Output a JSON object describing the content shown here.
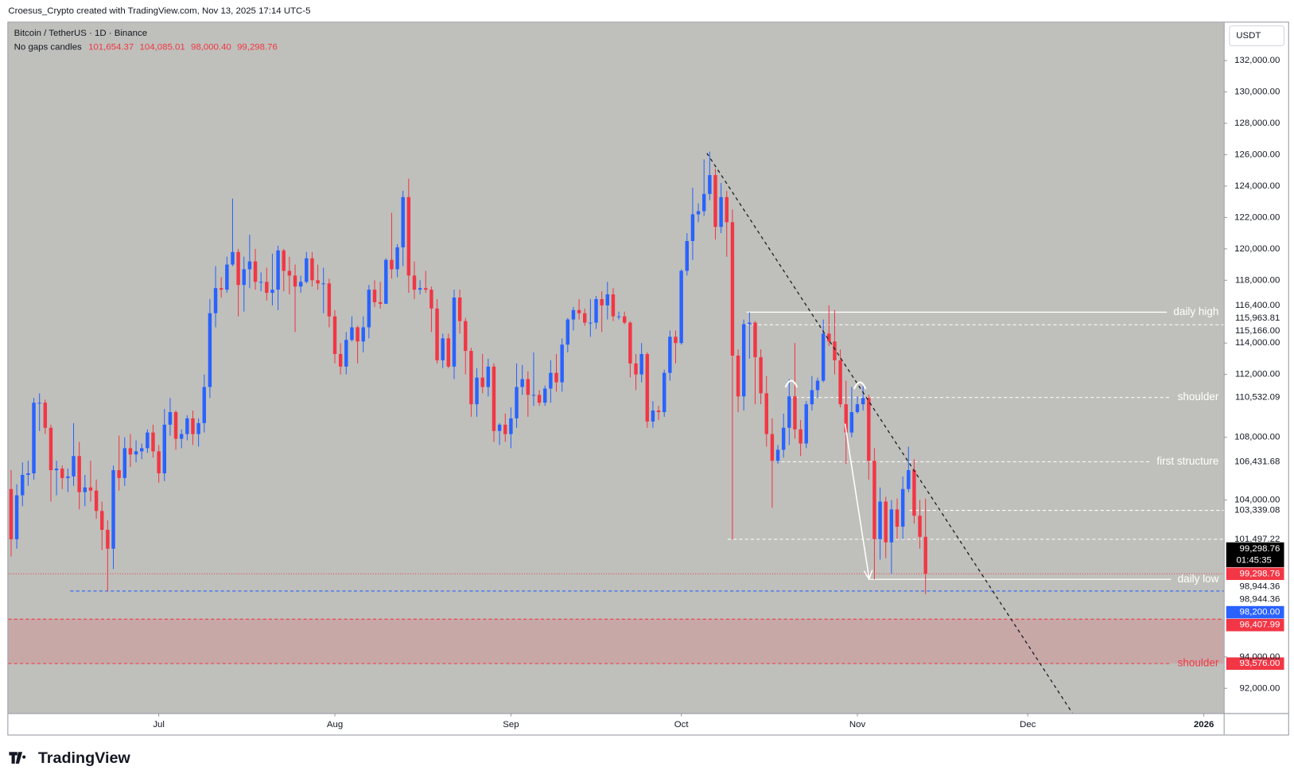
{
  "header": "Croesus_Crypto created with TradingView.com, Nov 13, 2025 17:14 UTC-5",
  "footer": "TradingView",
  "chart_data": {
    "type": "candlestick",
    "title": "Bitcoin / TetherUS · 1D · Binance",
    "subtitle": "No gaps candles",
    "ohlc_labels": [
      "101,654.37",
      "104,085.01",
      "98,000.40",
      "99,298.76"
    ],
    "currency": "USDT",
    "up_color": "#2962ff",
    "down_color": "#f23645",
    "background": "#bfc0bb",
    "grid": false,
    "xlim": [
      -0.5,
      213.5
    ],
    "xticks": [
      {
        "value": 26,
        "label": "Jul"
      },
      {
        "value": 57,
        "label": "Aug"
      },
      {
        "value": 88,
        "label": "Sep"
      },
      {
        "value": 118,
        "label": "Oct"
      },
      {
        "value": 149,
        "label": "Nov"
      },
      {
        "value": 179,
        "label": "Dec"
      },
      {
        "value": 210,
        "label": "2026"
      }
    ],
    "ylim": [
      90420,
      134420
    ],
    "yticks": [
      {
        "value": 92000,
        "label": "92,000.00"
      },
      {
        "value": 94000,
        "label": "94,000.00"
      },
      {
        "value": 104000,
        "label": "104,000.00"
      },
      {
        "value": 108000,
        "label": "108,000.00"
      },
      {
        "value": 112000,
        "label": "112,000.00"
      },
      {
        "value": 114000,
        "label": "114,000.00"
      },
      {
        "value": 118000,
        "label": "118,000.00"
      },
      {
        "value": 120000,
        "label": "120,000.00"
      },
      {
        "value": 122000,
        "label": "122,000.00"
      },
      {
        "value": 124000,
        "label": "124,000.00"
      },
      {
        "value": 126000,
        "label": "126,000.00"
      },
      {
        "value": 128000,
        "label": "128,000.00"
      },
      {
        "value": 130000,
        "label": "130,000.00"
      },
      {
        "value": 132000,
        "label": "132,000.00"
      }
    ],
    "open": [
      104700,
      101500,
      104300,
      105600,
      105700,
      110200,
      110200,
      108600,
      105900,
      106000,
      105400,
      105500,
      106800,
      104500,
      104800,
      104600,
      103300,
      102100,
      100900,
      105900,
      105400,
      107300,
      106900,
      107100,
      107300,
      108300,
      107100,
      105700,
      108800,
      109600,
      107900,
      108200,
      109200,
      108200,
      108900,
      111200,
      115900,
      117500,
      117400,
      119000,
      119800,
      117700,
      118700,
      119200,
      117900,
      117900,
      117200,
      117400,
      119900,
      118600,
      118300,
      117600,
      117900,
      119400,
      118000,
      117800,
      117800,
      115700,
      113300,
      112500,
      114200,
      115000,
      114100,
      115000,
      117400,
      116600,
      116500,
      119300,
      118700,
      120100,
      123300,
      118300,
      117400,
      117500,
      117400,
      116200,
      112900,
      114300,
      112500,
      116900,
      115400,
      113500,
      110100,
      111800,
      111200,
      112500,
      108400,
      108800,
      108200,
      109200,
      111200,
      111700,
      110700,
      110700,
      110200,
      111100,
      112100,
      111500,
      113900,
      115500,
      116100,
      115900,
      115300,
      115300,
      116800,
      116400,
      117100,
      115700,
      115700,
      115300,
      112700,
      112000,
      113300,
      109000,
      109700,
      109600,
      112100,
      114400,
      114000,
      118600,
      120500,
      122200,
      122400,
      123500,
      124700,
      121400,
      123300,
      121700,
      113200,
      110600,
      115200,
      115300,
      113100,
      110800,
      108200,
      106500,
      107200,
      108600,
      110600,
      108500,
      107600,
      110100,
      111000,
      111600,
      114600,
      114100,
      112900,
      110100,
      108300,
      109600,
      110100,
      110500,
      106500,
      101500,
      103900,
      101300,
      103400,
      102300,
      104700,
      105900,
      103000,
      101654.37
    ],
    "high": [
      105900,
      105000,
      106400,
      106500,
      110500,
      110800,
      110400,
      108800,
      106500,
      106200,
      106000,
      108900,
      107700,
      105600,
      106500,
      105300,
      103900,
      102700,
      106200,
      108100,
      108000,
      108200,
      107800,
      107600,
      108500,
      108800,
      107500,
      109800,
      110500,
      109700,
      108500,
      109400,
      109700,
      109200,
      112000,
      116800,
      118900,
      118200,
      119500,
      123200,
      120000,
      119500,
      120900,
      120000,
      118500,
      118800,
      119700,
      120200,
      120000,
      119500,
      119000,
      118300,
      119800,
      119800,
      119000,
      118800,
      118100,
      116100,
      114000,
      114700,
      115700,
      115100,
      115700,
      117700,
      118000,
      117900,
      119400,
      122300,
      120300,
      123700,
      124470,
      119200,
      118000,
      118600,
      117600,
      116800,
      114600,
      114600,
      117400,
      117400,
      115600,
      113700,
      112400,
      113300,
      113000,
      112700,
      108900,
      109500,
      109900,
      112700,
      112600,
      112200,
      113400,
      111000,
      111300,
      112900,
      113300,
      114300,
      115600,
      116300,
      116800,
      116200,
      116800,
      117000,
      117300,
      117900,
      117500,
      116000,
      116000,
      115400,
      113300,
      114000,
      113400,
      110300,
      110000,
      112300,
      114800,
      114800,
      118700,
      121000,
      123900,
      122900,
      125700,
      126200,
      125100,
      124200,
      123700,
      122500,
      113600,
      115500,
      115963.81,
      115400,
      113600,
      111900,
      109200,
      107500,
      109500,
      111700,
      114000,
      109100,
      110300,
      111900,
      111800,
      115500,
      116400,
      116100,
      113600,
      111600,
      111200,
      110600,
      111300,
      110700,
      107300,
      104800,
      104200,
      104000,
      104100,
      105500,
      107400,
      106600,
      104000,
      104085.01
    ],
    "low": [
      100400,
      100900,
      103600,
      104900,
      105300,
      108400,
      108200,
      103900,
      104300,
      104700,
      104500,
      104900,
      103400,
      103600,
      103900,
      102800,
      100800,
      98200,
      99600,
      104600,
      104900,
      106100,
      106400,
      106600,
      107000,
      106700,
      105100,
      105200,
      108100,
      107200,
      107300,
      107800,
      107500,
      107400,
      108300,
      110500,
      115000,
      116900,
      117200,
      118900,
      115700,
      116000,
      117500,
      117400,
      117300,
      116700,
      116400,
      116100,
      117300,
      117100,
      114700,
      117200,
      117800,
      117600,
      117400,
      115900,
      115000,
      112700,
      112000,
      112000,
      114100,
      112700,
      113400,
      114300,
      116300,
      116200,
      116500,
      118100,
      118200,
      118900,
      117200,
      116800,
      117100,
      117200,
      114700,
      112700,
      112400,
      112400,
      111700,
      114600,
      112000,
      109300,
      109300,
      110800,
      110600,
      107700,
      107500,
      107700,
      107300,
      108600,
      110700,
      109300,
      110000,
      110000,
      110000,
      110200,
      110900,
      110900,
      113400,
      114800,
      115500,
      115100,
      114400,
      114900,
      114700,
      115500,
      115400,
      115500,
      115200,
      111800,
      111000,
      111500,
      108600,
      108600,
      109100,
      109300,
      111600,
      112700,
      113900,
      118300,
      119300,
      121700,
      122100,
      123100,
      120600,
      121000,
      119500,
      101497.22,
      109600,
      109700,
      113000,
      110100,
      110100,
      107400,
      103500,
      106300,
      106700,
      107500,
      107900,
      106800,
      107300,
      109700,
      110500,
      111500,
      113800,
      112000,
      109900,
      106300,
      108000,
      109500,
      109700,
      105300,
      98944.36,
      100200,
      100300,
      99300,
      101500,
      101500,
      104500,
      102500,
      100900,
      98000.4
    ],
    "close": [
      101500,
      104300,
      105600,
      105700,
      110200,
      110200,
      108600,
      105900,
      106000,
      105400,
      105500,
      106800,
      104500,
      104800,
      104600,
      103300,
      102100,
      100900,
      105900,
      105400,
      107300,
      106900,
      107100,
      107300,
      108300,
      107100,
      105700,
      108800,
      109600,
      107900,
      108200,
      109200,
      108200,
      108900,
      111200,
      115900,
      117500,
      117400,
      119000,
      119800,
      117700,
      118700,
      119200,
      117900,
      117900,
      117200,
      117400,
      119900,
      118600,
      118300,
      117600,
      117900,
      119400,
      118000,
      117800,
      117800,
      115700,
      113300,
      112500,
      114200,
      115000,
      114100,
      115000,
      117400,
      116600,
      116500,
      119300,
      118700,
      120100,
      123300,
      118300,
      117400,
      117500,
      117400,
      116200,
      112900,
      114300,
      112500,
      116900,
      115400,
      113500,
      110100,
      111800,
      111200,
      112500,
      108400,
      108800,
      108200,
      109200,
      111200,
      111700,
      110700,
      110700,
      110200,
      111100,
      112100,
      111500,
      113900,
      115500,
      116100,
      115900,
      115300,
      115300,
      116800,
      116400,
      117100,
      115700,
      115700,
      115300,
      112700,
      112000,
      113300,
      109000,
      109700,
      109600,
      112100,
      114400,
      114000,
      118600,
      120500,
      122200,
      122400,
      123500,
      124700,
      121400,
      123300,
      121700,
      113200,
      110600,
      115200,
      115300,
      113100,
      110800,
      108200,
      106500,
      107200,
      108600,
      110600,
      108500,
      107600,
      110100,
      111000,
      111600,
      114600,
      114100,
      112900,
      110100,
      108300,
      109600,
      110100,
      110500,
      106500,
      101500,
      103900,
      101300,
      103400,
      102300,
      104700,
      105900,
      103000,
      101654.37,
      99298.76
    ],
    "current": {
      "value": 99298.76,
      "label": "99,298.76",
      "countdown": "01:45:35",
      "color": "#f23645"
    },
    "price_lines": [
      {
        "value": 116400,
        "label": "116,400.00",
        "line": "none",
        "box": "#ffffff",
        "box_text": "#131722"
      },
      {
        "value": 115963.81,
        "label": "115,963.81",
        "text": "daily high",
        "line": "solid",
        "color": "#ffffff",
        "box": "#ffffff",
        "box_text": "#131722"
      },
      {
        "value": 115166,
        "label": "115,166.00",
        "line": "dashed",
        "color": "#ffffff",
        "box": "#ffffff",
        "box_text": "#131722"
      },
      {
        "value": 110532.09,
        "label": "110,532.09",
        "text": "shoulder",
        "line": "dashed",
        "color": "#ffffff",
        "box": "#ffffff",
        "box_text": "#131722"
      },
      {
        "value": 106431.68,
        "label": "106,431.68",
        "text": "first structure",
        "line": "dashed",
        "color": "#ffffff",
        "box": "#ffffff",
        "box_text": "#131722"
      },
      {
        "value": 103339.08,
        "label": "103,339.08",
        "line": "dashed",
        "color": "#ffffff",
        "box": "#ffffff",
        "box_text": "#131722"
      },
      {
        "value": 101497.22,
        "label": "101,497.22",
        "line": "dashed",
        "color": "#ffffff",
        "box": "#ffffff",
        "box_text": "#131722"
      },
      {
        "value": 99298.76,
        "label": "99,298.76",
        "line": "none",
        "box": "#f23645",
        "box_text": "#ffffff"
      },
      {
        "value": 98944.36,
        "label": "98,944.36",
        "text": "daily low",
        "line": "solid",
        "color": "#ffffff",
        "box": "#ffffff",
        "box_text": "#131722"
      },
      {
        "value": 98944.36,
        "label": "98,944.36",
        "line": "none",
        "box": "#ffffff",
        "box_text": "#131722"
      },
      {
        "value": 98200,
        "label": "98,200.00",
        "line": "dashed",
        "color": "#2962ff",
        "box": "#2962ff",
        "box_text": "#ffffff"
      },
      {
        "value": 96407.99,
        "label": "96,407.99",
        "line": "dashed",
        "color": "#f23645",
        "box": "#f23645",
        "box_text": "#ffffff",
        "fill_to_next": "rgba(242,54,69,0.17)"
      },
      {
        "value": 93576,
        "label": "93,576.00",
        "text": "shoulder",
        "line": "dashed",
        "color": "#f23645",
        "box": "#f23645",
        "box_text": "#ffffff"
      }
    ]
  }
}
